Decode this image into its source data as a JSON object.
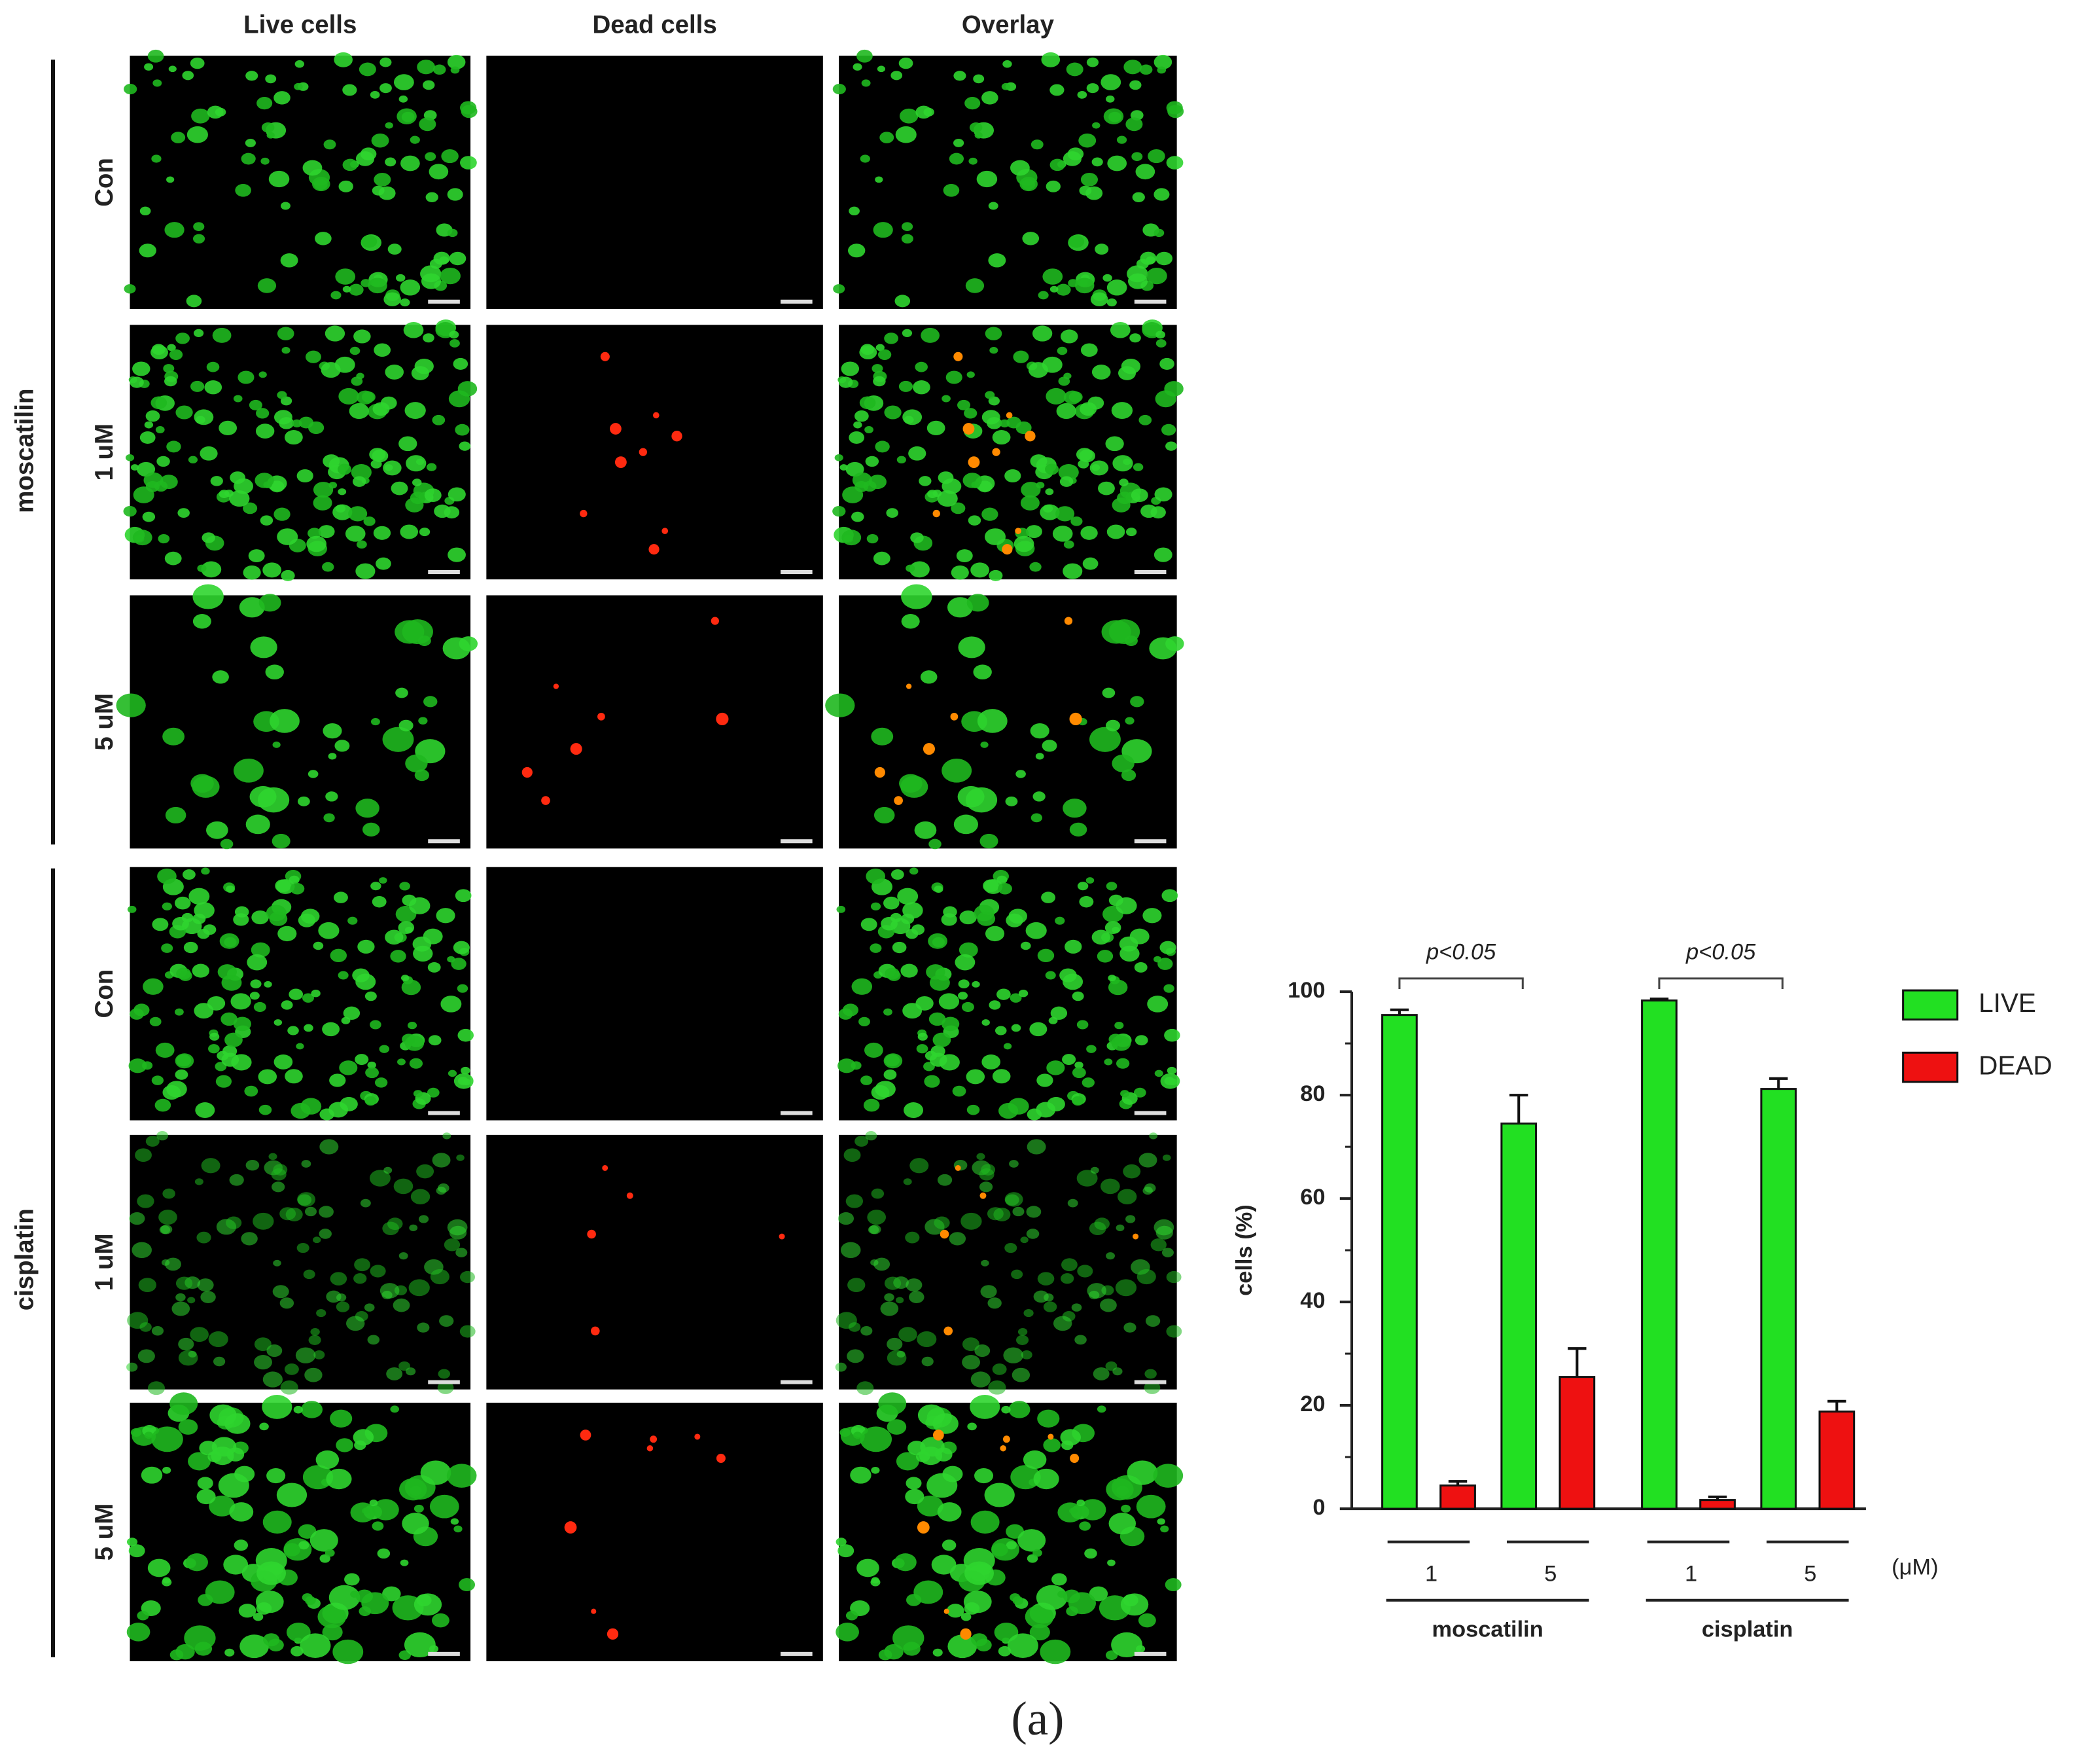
{
  "panels": {
    "columns": [
      "Live cells",
      "Dead cells",
      "Overlay"
    ],
    "rows": [
      "Con",
      "1 uM",
      "5 uM",
      "Con",
      "1 uM",
      "5 uM"
    ],
    "groups": [
      "moscatilin",
      "cisplatin"
    ]
  },
  "caption": "(a)",
  "chart_data": {
    "type": "bar",
    "ylabel": "cells (%)",
    "categories": [
      "1",
      "5",
      "1",
      "5"
    ],
    "groups": [
      {
        "name": "moscatilin",
        "categories": [
          0,
          1
        ]
      },
      {
        "name": "cisplatin",
        "categories": [
          2,
          3
        ]
      }
    ],
    "unit": "(μM)",
    "series": [
      {
        "name": "LIVE",
        "color": "#22e022",
        "values": [
          95.5,
          74.5,
          98.3,
          81.2
        ],
        "errors": [
          1,
          5.5,
          0.3,
          2
        ]
      },
      {
        "name": "DEAD",
        "color": "#ee1111",
        "values": [
          4.5,
          25.5,
          1.7,
          18.8
        ],
        "errors": [
          0.8,
          5.5,
          0.6,
          2
        ]
      }
    ],
    "annotations": [
      {
        "text": "p<0.05",
        "from": 0,
        "to": 1
      },
      {
        "text": "p<0.05",
        "from": 2,
        "to": 3
      }
    ],
    "ylim": [
      0,
      100
    ],
    "yticks": [
      0,
      20,
      40,
      60,
      80,
      100
    ],
    "minor_yticks": [
      10,
      30,
      50,
      70,
      90
    ],
    "legend": "right"
  }
}
